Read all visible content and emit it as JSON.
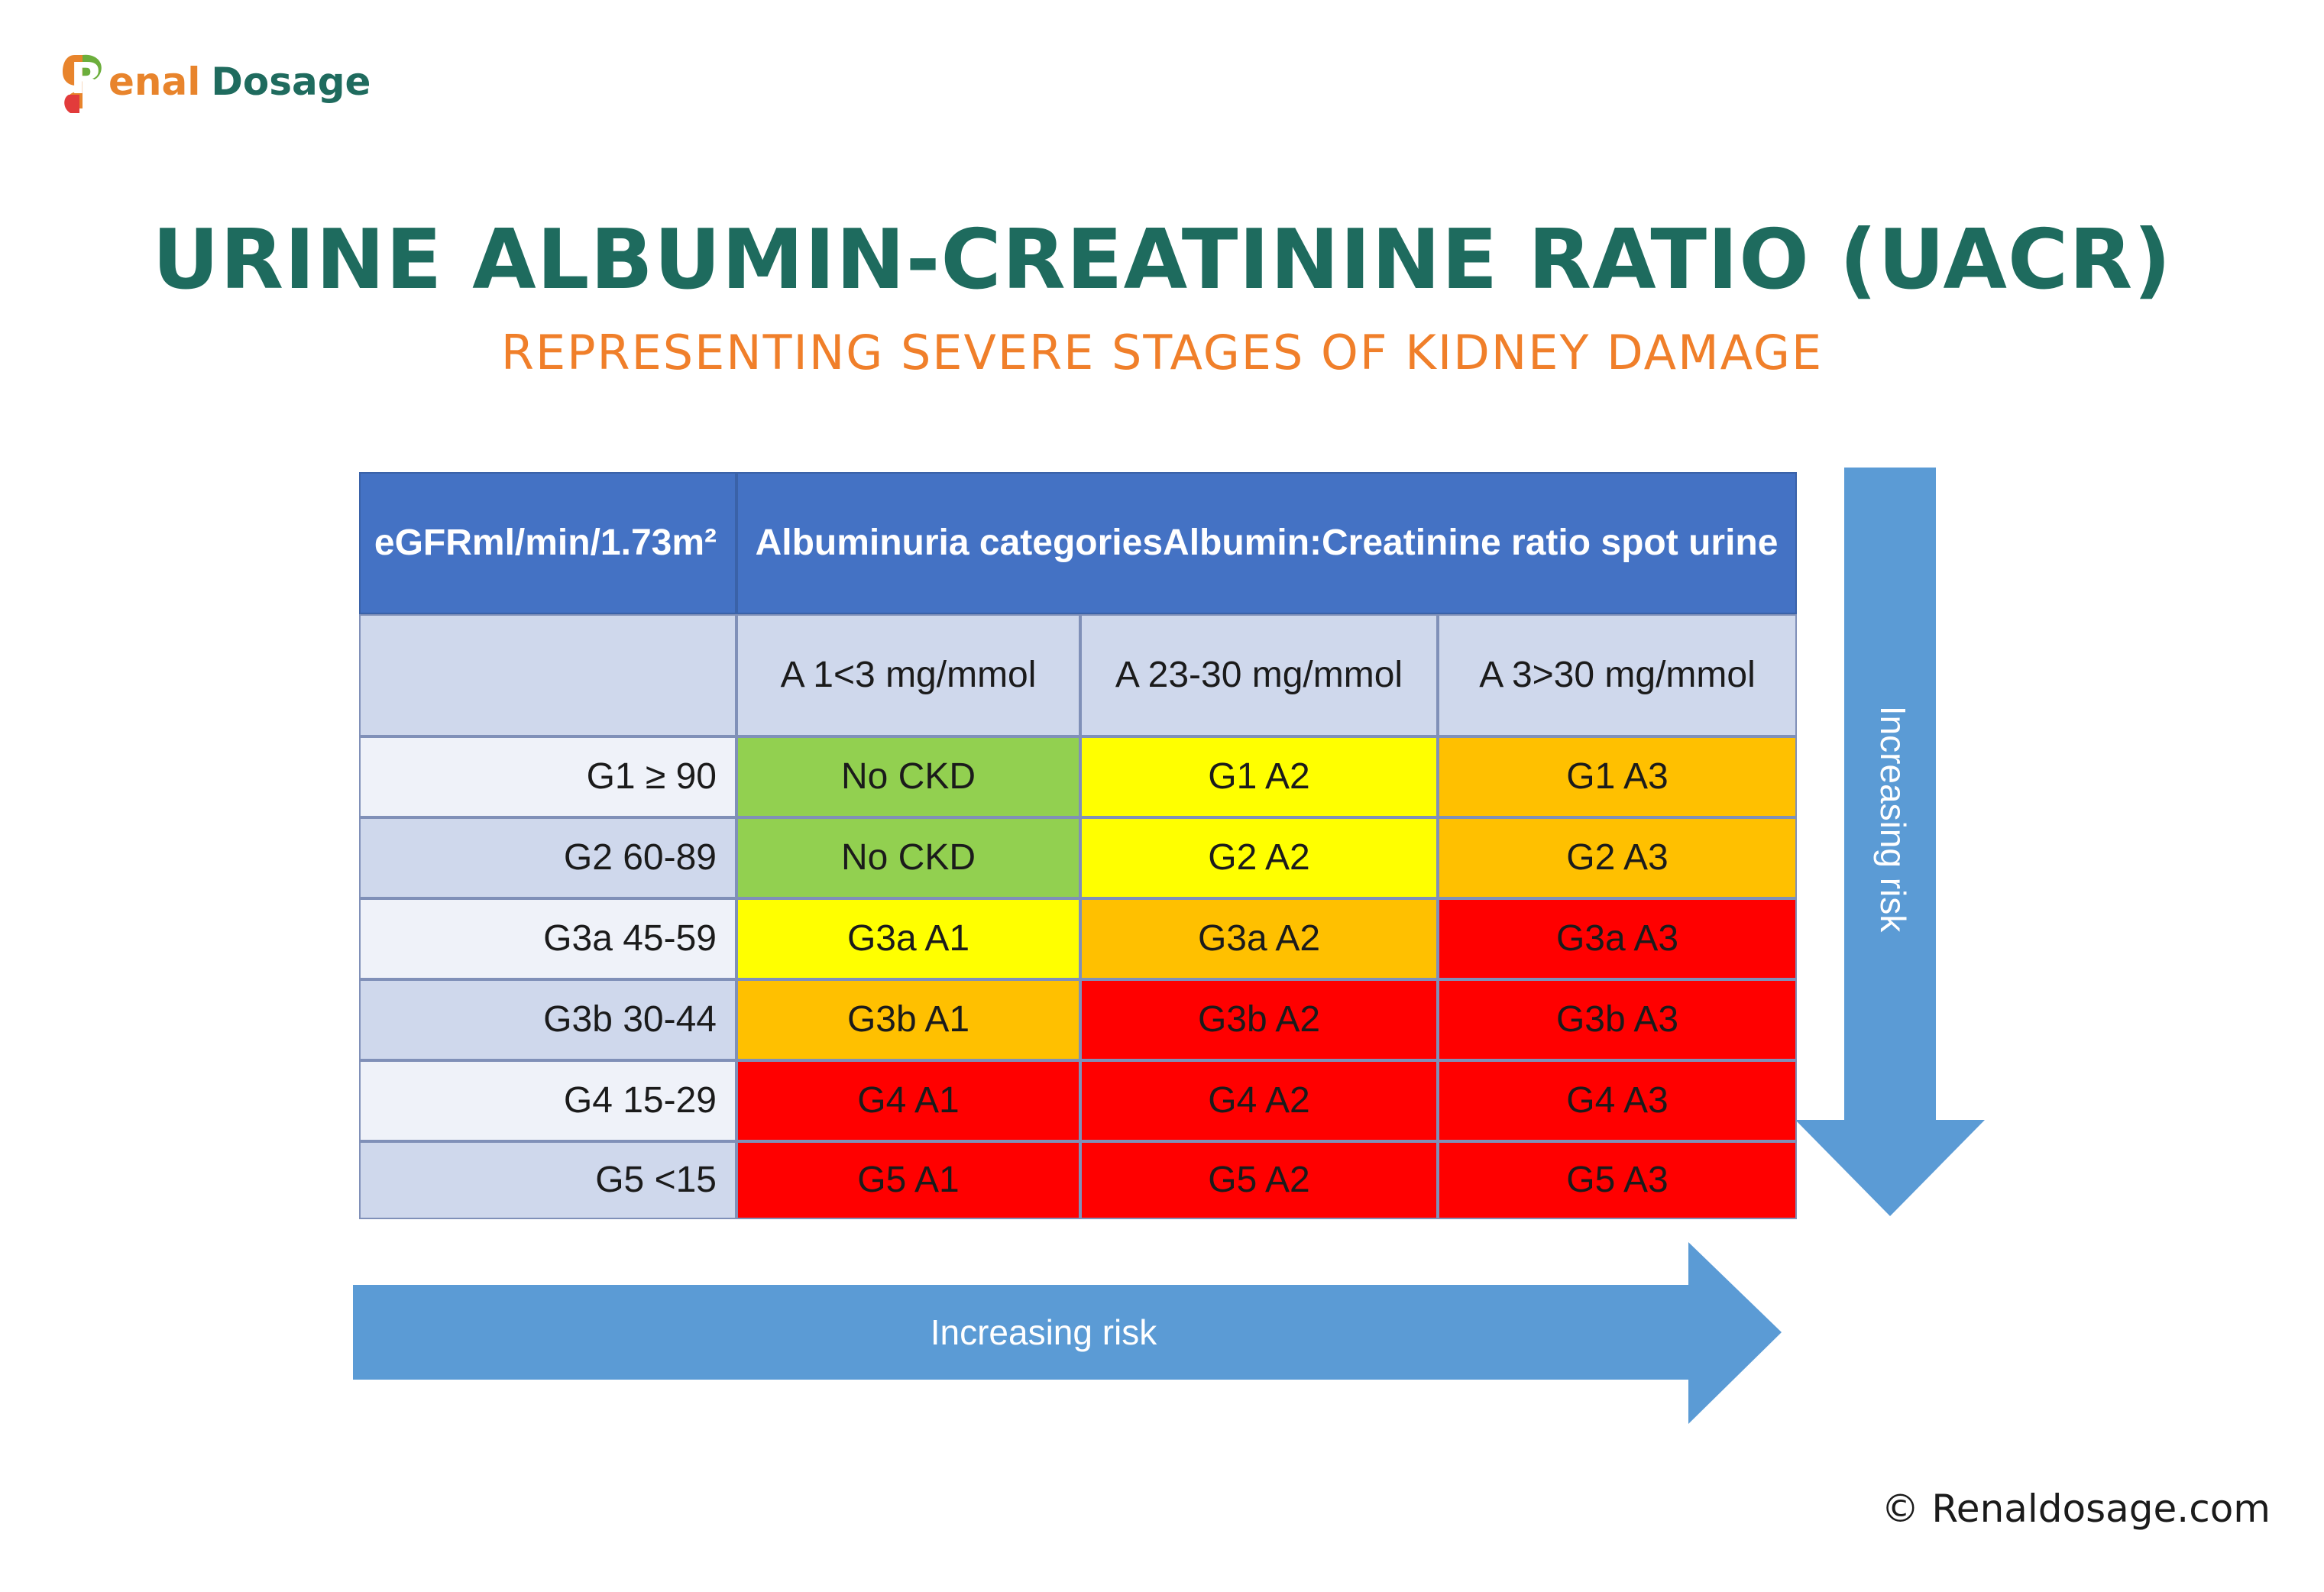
{
  "brand": {
    "logo_r": "R",
    "logo_enal": "enal",
    "logo_dosage": "Dosage",
    "colors": {
      "green": "#1f6b5e",
      "orange": "#e8842c"
    }
  },
  "title": "URINE ALBUMIN-CREATININE RATIO (UACR)",
  "subtitle": "REPRESENTING SEVERE STAGES OF KIDNEY DAMAGE",
  "table": {
    "egfr_header": [
      "eGFR",
      "ml/min/1.73m²"
    ],
    "albuminuria_header": [
      "Albuminuria categories",
      "Albumin:Creatinine ratio spot urine"
    ],
    "columns": [
      {
        "code": "A 1",
        "range": "<3 mg/mmol"
      },
      {
        "code": "A 2",
        "range": "3-30 mg/mmol"
      },
      {
        "code": "A 3",
        "range": ">30 mg/mmol"
      }
    ],
    "rows": [
      {
        "label": "G1 ≥ 90",
        "cells": [
          "No CKD",
          "G1 A2",
          "G1 A3"
        ],
        "colors": [
          "#92d050",
          "#ffff00",
          "#ffc000"
        ]
      },
      {
        "label": "G2 60-89",
        "cells": [
          "No CKD",
          "G2 A2",
          "G2 A3"
        ],
        "colors": [
          "#92d050",
          "#ffff00",
          "#ffc000"
        ]
      },
      {
        "label": "G3a 45-59",
        "cells": [
          "G3a A1",
          "G3a A2",
          "G3a A3"
        ],
        "colors": [
          "#ffff00",
          "#ffc000",
          "#ff0000"
        ]
      },
      {
        "label": "G3b 30-44",
        "cells": [
          "G3b A1",
          "G3b A2",
          "G3b A3"
        ],
        "colors": [
          "#ffc000",
          "#ff0000",
          "#ff0000"
        ]
      },
      {
        "label": "G4 15-29",
        "cells": [
          "G4 A1",
          "G4 A2",
          "G4 A3"
        ],
        "colors": [
          "#ff0000",
          "#ff0000",
          "#ff0000"
        ]
      },
      {
        "label": "G5 <15",
        "cells": [
          "G5 A1",
          "G5 A2",
          "G5 A3"
        ],
        "colors": [
          "#ff0000",
          "#ff0000",
          "#ff0000"
        ]
      }
    ]
  },
  "arrows": {
    "horizontal_label": "Increasing risk",
    "vertical_label": "Increasing risk",
    "color": "#5b9bd5"
  },
  "footer": "© Renaldosage.com"
}
